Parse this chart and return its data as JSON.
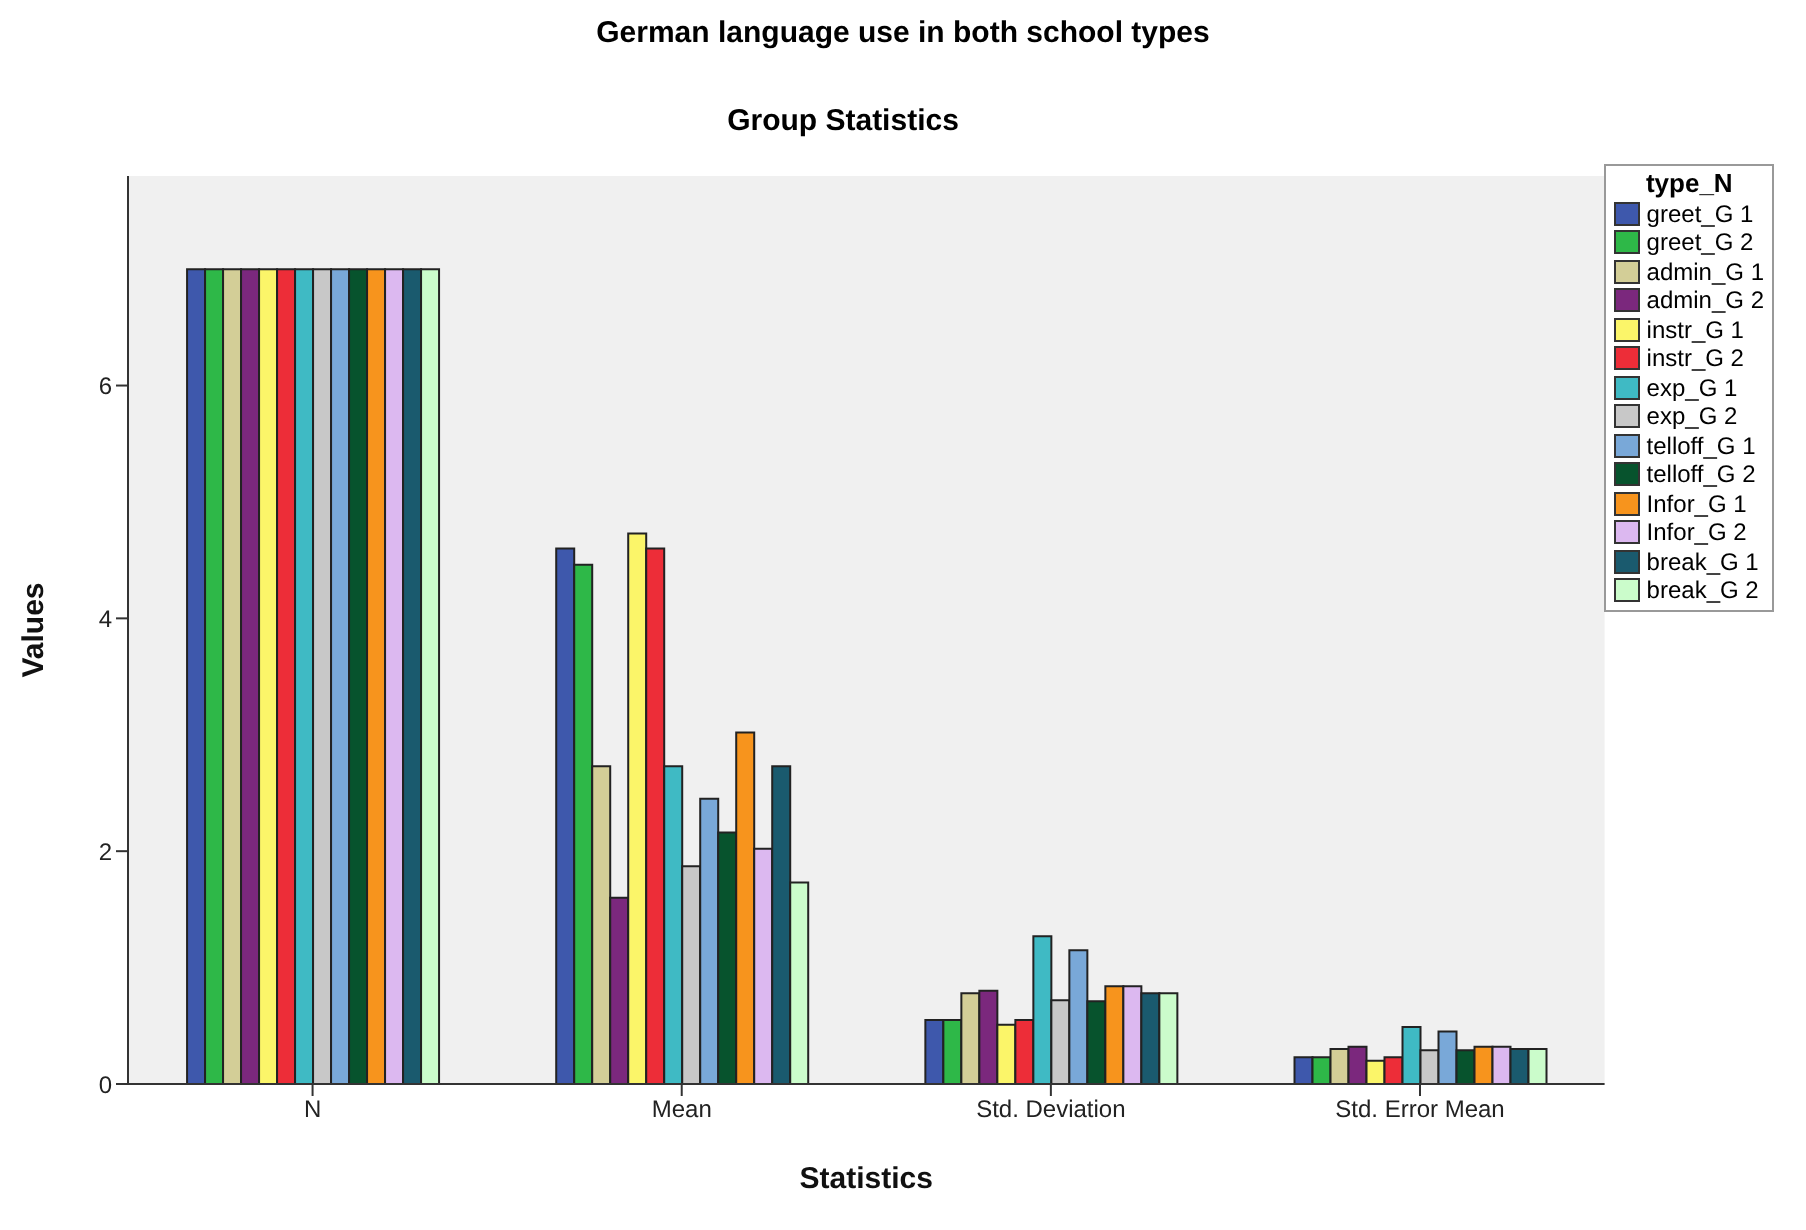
{
  "chart_data": {
    "type": "bar",
    "title": "German language use in both school types",
    "subtitle": "Group Statistics",
    "xlabel": "Statistics",
    "ylabel": "Values",
    "legend_title": "type_N",
    "categories": [
      "N",
      "Mean",
      "Std. Deviation",
      "Std. Error Mean"
    ],
    "series": [
      {
        "name": "greet_G 1",
        "color": "#3e58ac",
        "values": [
          7,
          4.6,
          0.55,
          0.23
        ]
      },
      {
        "name": "greet_G 2",
        "color": "#2eb848",
        "values": [
          7,
          4.46,
          0.55,
          0.23
        ]
      },
      {
        "name": "admin_G 1",
        "color": "#d3ce97",
        "values": [
          7,
          2.73,
          0.78,
          0.3
        ]
      },
      {
        "name": "admin_G 2",
        "color": "#7b287d",
        "values": [
          7,
          1.6,
          0.8,
          0.32
        ]
      },
      {
        "name": "instr_G 1",
        "color": "#fbf569",
        "values": [
          7,
          4.73,
          0.51,
          0.2
        ]
      },
      {
        "name": "instr_G 2",
        "color": "#ed2d38",
        "values": [
          7,
          4.6,
          0.55,
          0.23
        ]
      },
      {
        "name": "exp_G 1",
        "color": "#3fbac4",
        "values": [
          7,
          2.73,
          1.27,
          0.49
        ]
      },
      {
        "name": "exp_G 2",
        "color": "#c8c8c8",
        "values": [
          7,
          1.87,
          0.72,
          0.29
        ]
      },
      {
        "name": "telloff_G 1",
        "color": "#79a8d8",
        "values": [
          7,
          2.45,
          1.15,
          0.45
        ]
      },
      {
        "name": "telloff_G 2",
        "color": "#07532d",
        "values": [
          7,
          2.16,
          0.71,
          0.29
        ]
      },
      {
        "name": "Infor_G 1",
        "color": "#f7941d",
        "values": [
          7,
          3.02,
          0.84,
          0.32
        ]
      },
      {
        "name": "Infor_G 2",
        "color": "#dcb8f0",
        "values": [
          7,
          2.02,
          0.84,
          0.32
        ]
      },
      {
        "name": "break_G 1",
        "color": "#1a5a6e",
        "values": [
          7,
          2.73,
          0.78,
          0.3
        ]
      },
      {
        "name": "break_G 2",
        "color": "#cbfccb",
        "values": [
          7,
          1.73,
          0.78,
          0.3
        ]
      }
    ],
    "ylim": [
      0,
      7.8
    ],
    "yticks": [
      0,
      2,
      4,
      6
    ],
    "grid": false,
    "legend": "right"
  }
}
